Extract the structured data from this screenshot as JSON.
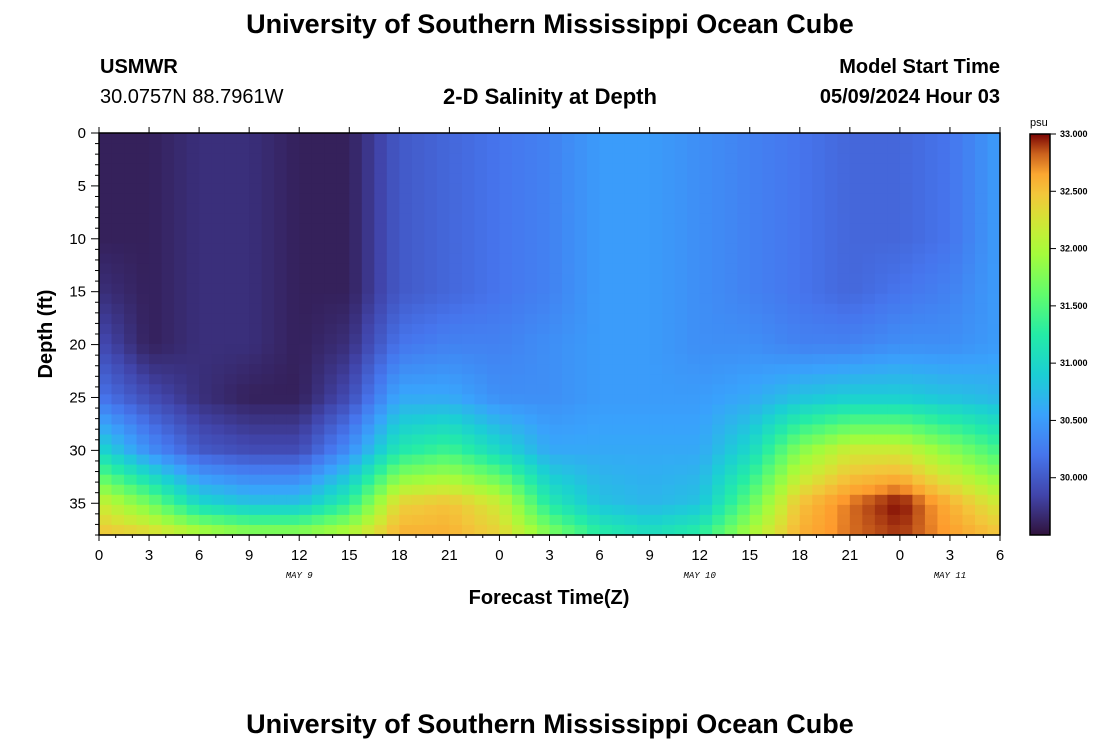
{
  "page": {
    "title_top": "University of Southern Mississippi Ocean Cube",
    "title_bottom": "University of Southern Mississippi Ocean Cube",
    "station_id": "USMWR",
    "coords": "30.0757N  88.7961W",
    "model_label": "Model Start Time",
    "model_time": "05/09/2024 Hour 03"
  },
  "chart_data": {
    "type": "heatmap",
    "title": "2-D Salinity at Depth",
    "xlabel": "Forecast Time(Z)",
    "ylabel": "Depth (ft)",
    "colorbar_label": "psu",
    "colorbar_ticks": [
      "33.000",
      "32.500",
      "32.000",
      "31.500",
      "31.000",
      "30.500",
      "30.000"
    ],
    "colorbar_tick_values": [
      33.0,
      32.5,
      32.0,
      31.5,
      31.0,
      30.5,
      30.0
    ],
    "clim": [
      29.5,
      33.0
    ],
    "ylim": [
      0,
      38
    ],
    "y_ticks": [
      "0",
      "5",
      "10",
      "15",
      "20",
      "25",
      "30",
      "35"
    ],
    "y_tick_values": [
      0,
      5,
      10,
      15,
      20,
      25,
      30,
      35
    ],
    "xlim_hours": [
      0,
      54
    ],
    "x_ticks": [
      "0",
      "3",
      "6",
      "9",
      "12",
      "15",
      "18",
      "21",
      "0",
      "3",
      "6",
      "9",
      "12",
      "15",
      "18",
      "21",
      "0",
      "3",
      "6"
    ],
    "day_labels": [
      {
        "label": "MAY 9",
        "hour": 12
      },
      {
        "label": "MAY 10",
        "hour": 36
      },
      {
        "label": "MAY 11",
        "hour": 51
      }
    ],
    "time_hours": [
      0,
      3,
      6,
      9,
      12,
      15,
      18,
      21,
      24,
      27,
      30,
      33,
      36,
      39,
      42,
      45,
      48,
      51,
      54
    ],
    "depth_ft": [
      0,
      5,
      10,
      15,
      20,
      25,
      30,
      35,
      38
    ],
    "salinity_psu": [
      [
        29.6,
        29.6,
        29.7,
        29.7,
        29.6,
        29.6,
        30.0,
        30.1,
        30.2,
        30.3,
        30.5,
        30.5,
        30.4,
        30.3,
        30.2,
        30.1,
        30.1,
        30.2,
        30.5
      ],
      [
        29.6,
        29.6,
        29.7,
        29.7,
        29.6,
        29.6,
        30.0,
        30.1,
        30.2,
        30.3,
        30.5,
        30.5,
        30.4,
        30.3,
        30.2,
        30.1,
        30.1,
        30.2,
        30.5
      ],
      [
        29.6,
        29.6,
        29.7,
        29.7,
        29.6,
        29.6,
        30.0,
        30.1,
        30.2,
        30.3,
        30.5,
        30.5,
        30.4,
        30.3,
        30.2,
        30.1,
        30.1,
        30.2,
        30.5
      ],
      [
        29.7,
        29.6,
        29.7,
        29.7,
        29.6,
        29.6,
        30.0,
        30.1,
        30.2,
        30.3,
        30.5,
        30.5,
        30.4,
        30.3,
        30.2,
        30.1,
        30.2,
        30.3,
        30.5
      ],
      [
        29.9,
        29.6,
        29.7,
        29.7,
        29.6,
        29.7,
        30.2,
        30.3,
        30.3,
        30.4,
        30.5,
        30.5,
        30.4,
        30.4,
        30.3,
        30.3,
        30.4,
        30.4,
        30.5
      ],
      [
        30.2,
        29.9,
        29.7,
        29.6,
        29.6,
        29.9,
        30.6,
        30.6,
        30.4,
        30.4,
        30.5,
        30.5,
        30.5,
        30.6,
        30.8,
        30.9,
        30.9,
        30.8,
        30.7
      ],
      [
        31.0,
        30.4,
        30.0,
        29.9,
        29.9,
        30.4,
        31.2,
        31.4,
        31.0,
        30.6,
        30.6,
        30.6,
        30.6,
        31.0,
        31.8,
        32.2,
        32.2,
        31.8,
        31.4
      ],
      [
        32.2,
        31.7,
        31.0,
        30.8,
        30.8,
        31.3,
        32.4,
        32.5,
        32.2,
        31.2,
        30.8,
        30.7,
        30.8,
        31.6,
        32.5,
        32.8,
        33.0,
        32.6,
        32.2
      ],
      [
        32.5,
        32.4,
        32.1,
        31.9,
        31.9,
        32.1,
        32.6,
        32.6,
        32.4,
        31.8,
        31.3,
        31.1,
        31.3,
        32.0,
        32.6,
        32.8,
        32.9,
        32.7,
        32.5
      ]
    ]
  }
}
